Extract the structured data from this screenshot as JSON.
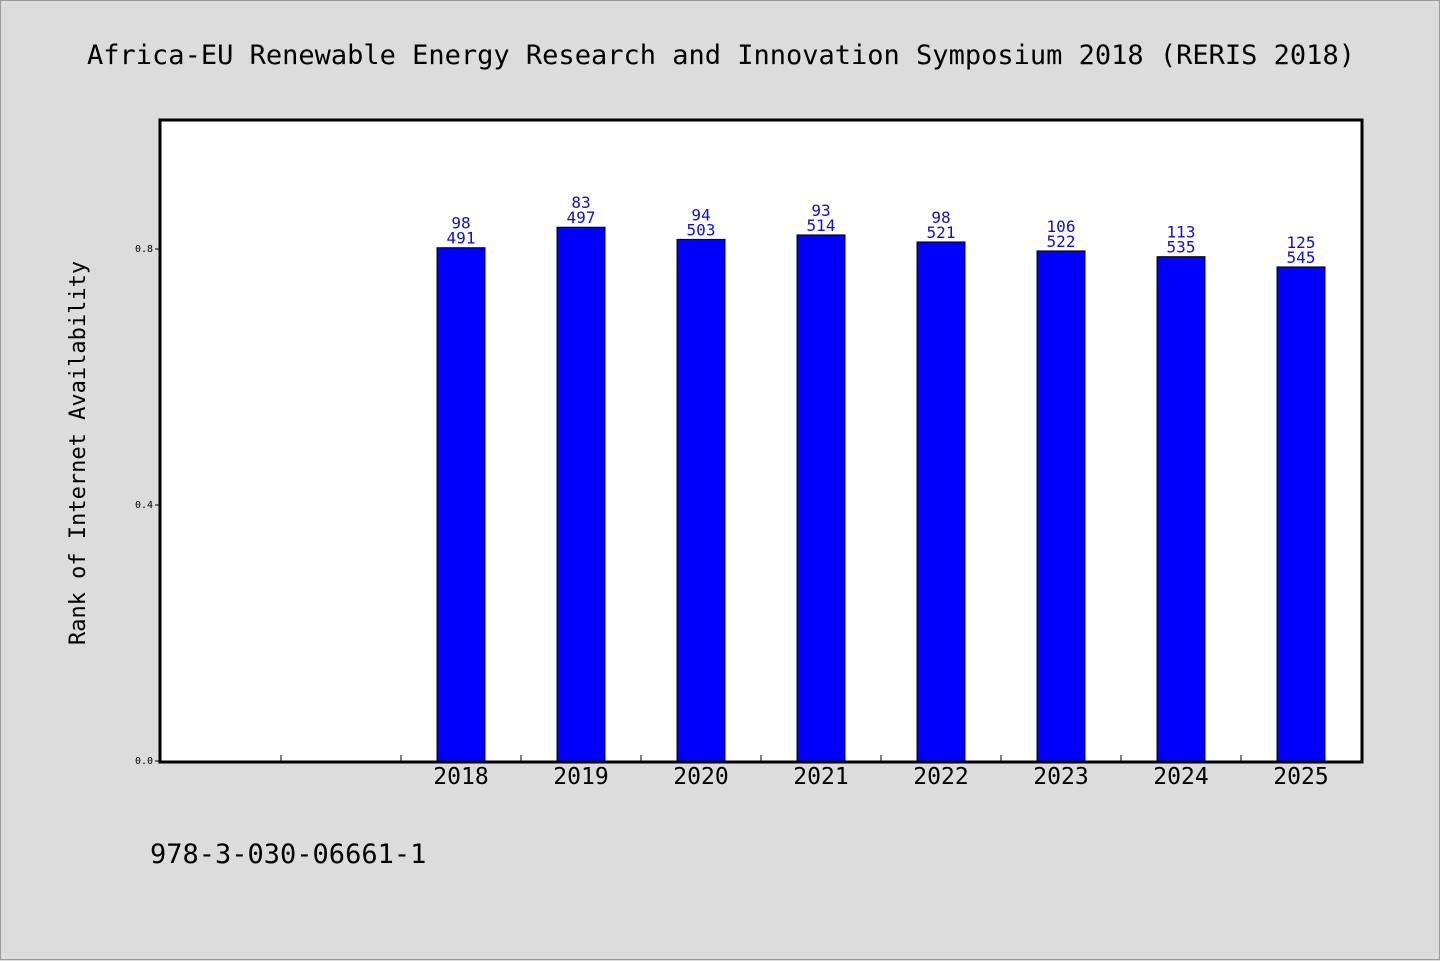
{
  "title": "Africa-EU Renewable Energy Research and Innovation Symposium 2018 (RERIS 2018)",
  "footer_text": "978-3-030-06661-1",
  "chart_data": {
    "type": "bar",
    "title": "Africa-EU Renewable Energy Research and Innovation Symposium 2018 (RERIS 2018)",
    "xlabel": "",
    "ylabel": "Rank of Internet Availability",
    "categories": [
      "",
      "",
      "2018",
      "2019",
      "2020",
      "2021",
      "2022",
      "2023",
      "2024",
      "2025"
    ],
    "values": [
      null,
      null,
      0.802,
      0.834,
      0.815,
      0.822,
      0.811,
      0.797,
      0.788,
      0.772
    ],
    "label_top": [
      "",
      "",
      "98",
      "83",
      "94",
      "93",
      "98",
      "106",
      "113",
      "125"
    ],
    "label_bottom": [
      "",
      "",
      "491",
      "497",
      "503",
      "514",
      "521",
      "522",
      "535",
      "545"
    ],
    "yticks": [
      "0.0",
      "0.4",
      "0.8"
    ],
    "ytick_values": [
      0.0,
      0.4,
      0.8
    ],
    "ylim": [
      0,
      1.0
    ],
    "grid": false,
    "legend": "none",
    "bar_color": "#0000ff",
    "label_color": "#1010c8"
  }
}
